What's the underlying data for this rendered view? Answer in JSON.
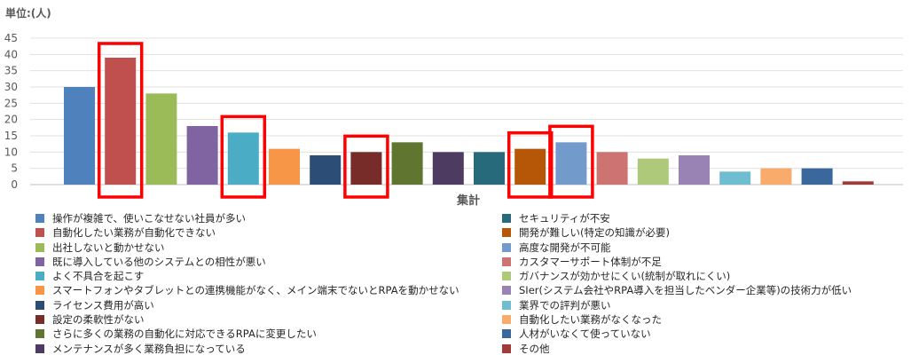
{
  "unit_label": "単位:(人)",
  "chart_data": {
    "type": "bar",
    "title": "",
    "xlabel": "集計",
    "ylabel": "",
    "ylim": [
      0,
      45
    ],
    "yticks": [
      0,
      5,
      10,
      15,
      20,
      25,
      30,
      35,
      40,
      45
    ],
    "grid": true,
    "legend_position": "bottom",
    "categories": [
      "集計"
    ],
    "series": [
      {
        "name": "操作が複雑で、使いこなせない社員が多い",
        "values": [
          30
        ],
        "color": "#4f81bd"
      },
      {
        "name": "自動化したい業務が自動化できない",
        "values": [
          39
        ],
        "color": "#c0504d",
        "highlight": true
      },
      {
        "name": "出社しないと動かせない",
        "values": [
          28
        ],
        "color": "#9bbb59"
      },
      {
        "name": "既に導入している他のシステムとの相性が悪い",
        "values": [
          18
        ],
        "color": "#8064a2"
      },
      {
        "name": "よく不具合を起こす",
        "values": [
          16
        ],
        "color": "#4bacc6",
        "highlight": true
      },
      {
        "name": "スマートフォンやタブレットとの連携機能がなく、メイン端末でないとRPAを動かせない",
        "values": [
          11
        ],
        "color": "#f79646"
      },
      {
        "name": "ライセンス費用が高い",
        "values": [
          9
        ],
        "color": "#2c4d75"
      },
      {
        "name": "設定の柔軟性がない",
        "values": [
          10
        ],
        "color": "#772c2a",
        "highlight": true
      },
      {
        "name": "さらに多くの業務の自動化に対応できるRPAに変更したい",
        "values": [
          13
        ],
        "color": "#5f7530"
      },
      {
        "name": "メンテナンスが多く業務負担になっている",
        "values": [
          10
        ],
        "color": "#4d3b62"
      },
      {
        "name": "セキュリティが不安",
        "values": [
          10
        ],
        "color": "#276a7c"
      },
      {
        "name": "開発が難しい(特定の知識が必要)",
        "values": [
          11
        ],
        "color": "#b65708",
        "highlight": true
      },
      {
        "name": "高度な開発が不可能",
        "values": [
          13
        ],
        "color": "#729aca",
        "highlight": true
      },
      {
        "name": "カスタマーサポート体制が不足",
        "values": [
          10
        ],
        "color": "#cd7371"
      },
      {
        "name": "ガバナンスが効かせにくい(統制が取れにくい)",
        "values": [
          8
        ],
        "color": "#afc97a"
      },
      {
        "name": "SIer(システム会社やRPA導入を担当したベンダー企業等)の技術力が低い",
        "values": [
          9
        ],
        "color": "#9983b5"
      },
      {
        "name": "業界での評判が悪い",
        "values": [
          4
        ],
        "color": "#6fbdd1"
      },
      {
        "name": "自動化したい業務がなくなった",
        "values": [
          5
        ],
        "color": "#f9ab6b"
      },
      {
        "name": "人材がいなくて使っていない",
        "values": [
          5
        ],
        "color": "#3a679c"
      },
      {
        "name": "その他",
        "values": [
          1
        ],
        "color": "#9f3b38"
      }
    ]
  }
}
